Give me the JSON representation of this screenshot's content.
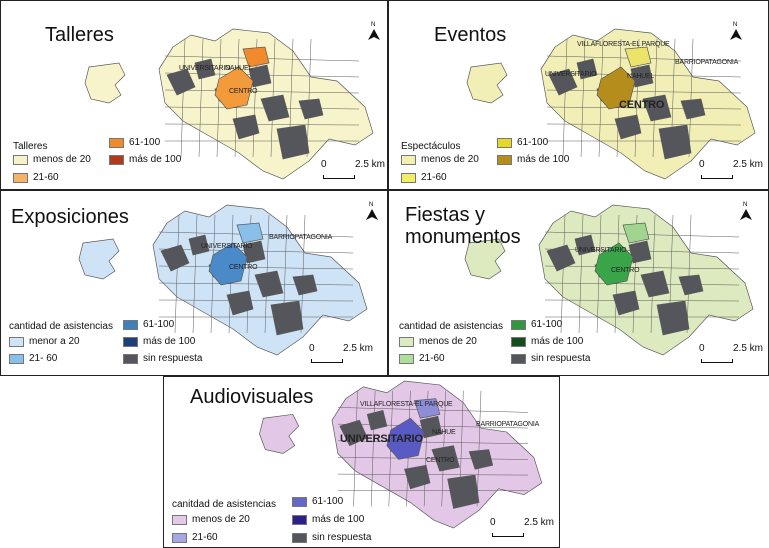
{
  "colors": {
    "no_response": "#55565b",
    "outline": "#5a5a5a"
  },
  "icons": {
    "north": "north-arrow-icon"
  },
  "panels": [
    {
      "id": "talleres",
      "title": "Talleres",
      "title2": "",
      "legend_title": "Talleres",
      "legend_left": [
        {
          "label": "menos de 20",
          "color": "#f7f3c8"
        },
        {
          "label": "21-60",
          "color": "#f5b36a"
        }
      ],
      "legend_right": [
        {
          "label": "61-100",
          "color": "#f08a2c"
        },
        {
          "label": "más de 100",
          "color": "#b23a1c"
        }
      ],
      "base": "#f7f3cb",
      "accent": "#f39a3a",
      "accent2": "#f08a2c",
      "labels": [
        {
          "text": "UNIVERSITARIO",
          "big": false
        },
        {
          "text": "NAHUEL",
          "big": false
        },
        {
          "text": "CENTRO",
          "big": false
        }
      ],
      "scale": {
        "start": "0",
        "end": "2.5 km"
      }
    },
    {
      "id": "eventos",
      "title": "Eventos",
      "title2": "",
      "legend_title": "Espectáculos",
      "legend_left": [
        {
          "label": "menos de 20",
          "color": "#f3efb2"
        },
        {
          "label": "21-60",
          "color": "#f2ee64"
        }
      ],
      "legend_right": [
        {
          "label": "61-100",
          "color": "#e7d727"
        },
        {
          "label": "más de 100",
          "color": "#b48d1d"
        }
      ],
      "base": "#f1efb6",
      "accent": "#b48d1d",
      "accent2": "#ece46a",
      "labels": [
        {
          "text": "VILLAFLORESTA-EL PARQUE",
          "big": false
        },
        {
          "text": "UNIVERSITARIO",
          "big": false
        },
        {
          "text": "BARRIOPATAGONIA",
          "big": false
        },
        {
          "text": "NAHUEL",
          "big": false
        },
        {
          "text": "CENTRO",
          "big": true
        }
      ],
      "scale": {
        "start": "0",
        "end": "2.5 km"
      }
    },
    {
      "id": "exposiciones",
      "title": "Exposiciones",
      "title2": "",
      "legend_title": "cantidad de asistencias",
      "legend_left": [
        {
          "label": "menor a 20",
          "color": "#cfe4f7"
        },
        {
          "label": "21- 60",
          "color": "#89c0ea"
        }
      ],
      "legend_right": [
        {
          "label": "61-100",
          "color": "#3d7fbf"
        },
        {
          "label": "más de 100",
          "color": "#1d3f7a"
        },
        {
          "label": "sin respuesta",
          "color": "#55565b"
        }
      ],
      "base": "#cfe3f6",
      "accent": "#4a8ac8",
      "accent2": "#89bfe9",
      "labels": [
        {
          "text": "UNIVERSITARIO",
          "big": false
        },
        {
          "text": "BARRIOPATAGONIA",
          "big": false
        },
        {
          "text": "CENTRO",
          "big": false
        }
      ],
      "scale": {
        "start": "0",
        "end": "2.5 km"
      }
    },
    {
      "id": "fiestas",
      "title": "Fiestas y",
      "title2": "monumentos",
      "legend_title": "cantidad de asistencias",
      "legend_left": [
        {
          "label": "menos de 20",
          "color": "#dcebc0"
        },
        {
          "label": "21-60",
          "color": "#aee09c"
        }
      ],
      "legend_right": [
        {
          "label": "61-100",
          "color": "#2f9a3d"
        },
        {
          "label": "más de 100",
          "color": "#134e1c"
        },
        {
          "label": "sin respuesta",
          "color": "#55565b"
        }
      ],
      "base": "#dde9bf",
      "accent": "#3aa548",
      "accent2": "#9fd58f",
      "labels": [
        {
          "text": "UNIVERSITARIO",
          "big": false
        },
        {
          "text": "CENTRO",
          "big": false
        }
      ],
      "scale": {
        "start": "0",
        "end": "2.5 km"
      }
    },
    {
      "id": "audiovisuales",
      "title": "Audiovisuales",
      "title2": "",
      "legend_title": "canitdad de asistencias",
      "legend_left": [
        {
          "label": "menos de 20",
          "color": "#e5c9e6"
        },
        {
          "label": "21-60",
          "color": "#a6a6e0"
        }
      ],
      "legend_right": [
        {
          "label": "61-100",
          "color": "#6666c7"
        },
        {
          "label": "más de 100",
          "color": "#2c1f86"
        },
        {
          "label": "sin respuesta",
          "color": "#55565b"
        }
      ],
      "base": "#e3c7e6",
      "accent": "#5a5ac4",
      "accent2": "#8e8ed8",
      "labels": [
        {
          "text": "VILLAFLORESTA-EL PARQUE",
          "big": false
        },
        {
          "text": "UNIVERSITARIO",
          "big": true
        },
        {
          "text": "BARRIOPATAGONIA",
          "big": false
        },
        {
          "text": "NAHUE",
          "big": false
        },
        {
          "text": "CENTRO",
          "big": false
        }
      ],
      "scale": {
        "start": "0",
        "end": "2.5 km"
      }
    }
  ]
}
